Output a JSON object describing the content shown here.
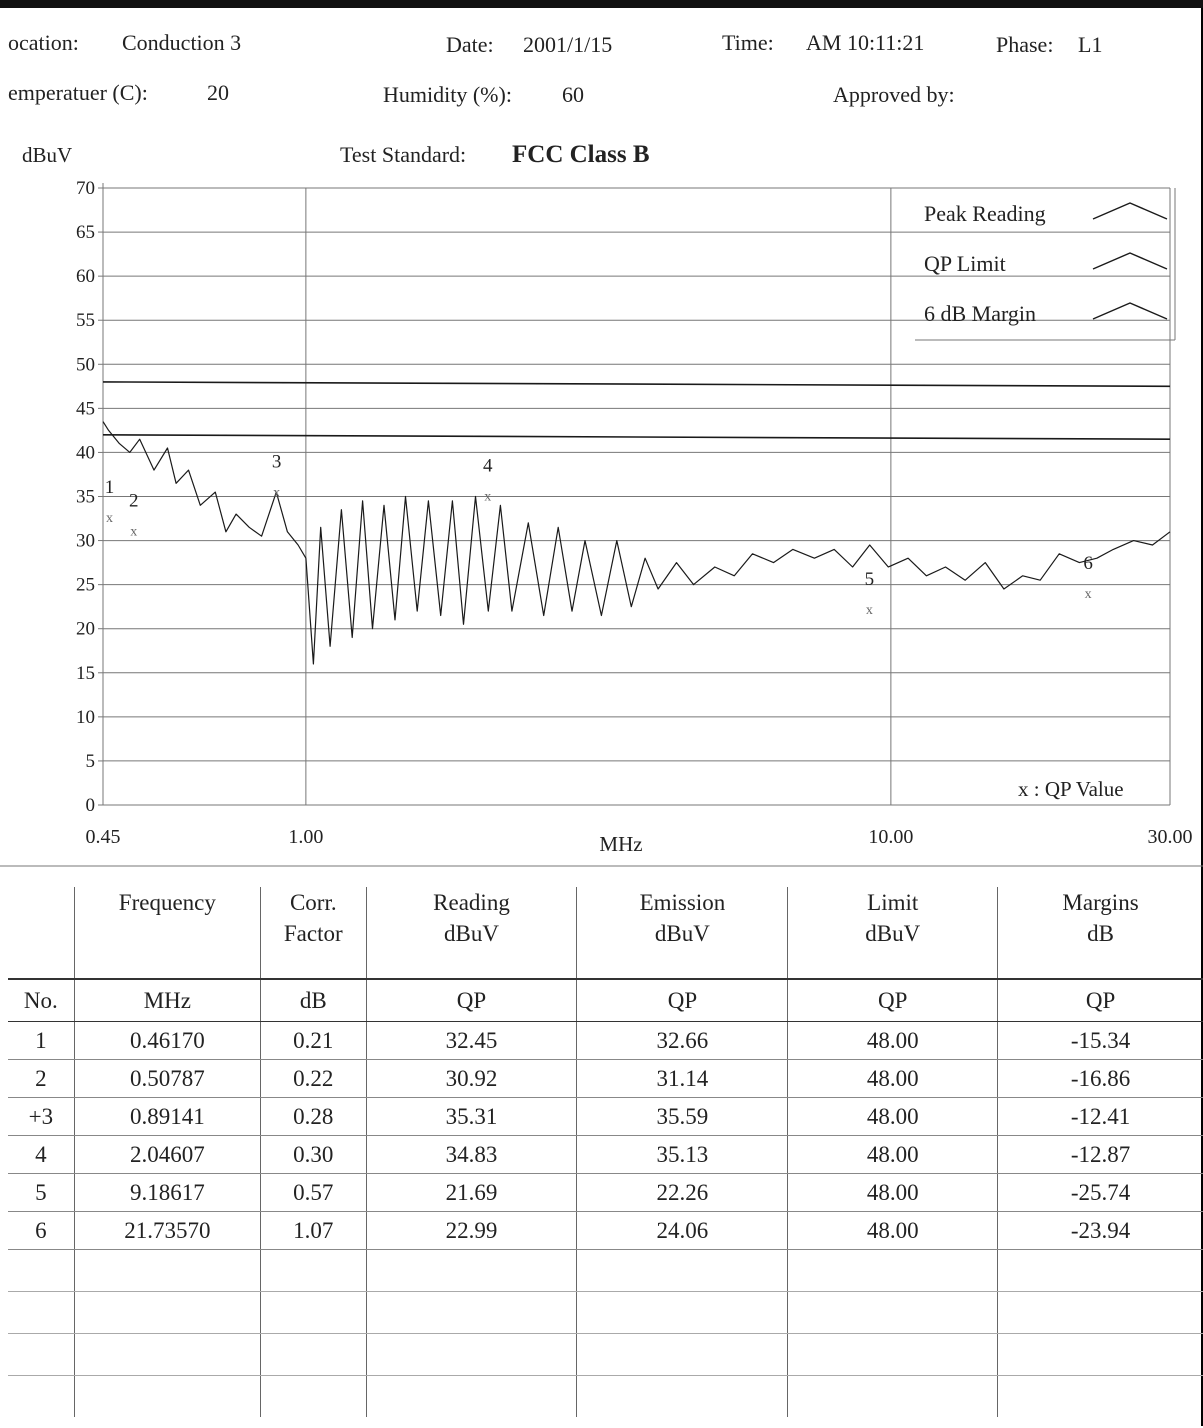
{
  "header": {
    "location_label": "ocation:",
    "location_value": "Conduction 3",
    "date_label": "Date:",
    "date_value": "2001/1/15",
    "time_label": "Time:",
    "time_value": "AM 10:11:21",
    "phase_label": "Phase:",
    "phase_value": "L1",
    "temperature_label": "emperatuer (C):",
    "temperature_value": "20",
    "humidity_label": "Humidity (%):",
    "humidity_value": "60",
    "approved_label": "Approved by:",
    "approved_value": ""
  },
  "chart_data": {
    "type": "line",
    "title": "FCC Class B",
    "title_prefix": "Test Standard:",
    "ylabel": "dBuV",
    "xlabel": "MHz",
    "xscale": "log",
    "xlim": [
      0.45,
      30.0
    ],
    "ylim": [
      0,
      70
    ],
    "yticks": [
      0,
      5,
      10,
      15,
      20,
      25,
      30,
      35,
      40,
      45,
      50,
      55,
      60,
      65,
      70
    ],
    "xticks": [
      "0.45",
      "1.00",
      "10.00",
      "30.00"
    ],
    "grid": true,
    "legend": {
      "placement": "top-right",
      "entries": [
        "Peak Reading",
        "QP Limit",
        "6 dB Margin"
      ],
      "qp_note": "x : QP Value"
    },
    "series": [
      {
        "name": "QP Limit",
        "x": [
          0.45,
          30.0
        ],
        "y": [
          48.0,
          47.5
        ]
      },
      {
        "name": "6 dB Margin",
        "x": [
          0.45,
          30.0
        ],
        "y": [
          42.0,
          41.5
        ]
      },
      {
        "name": "Peak Reading",
        "x": [
          0.45,
          0.46,
          0.48,
          0.5,
          0.52,
          0.55,
          0.58,
          0.6,
          0.63,
          0.66,
          0.7,
          0.73,
          0.76,
          0.8,
          0.84,
          0.89,
          0.93,
          0.97,
          1.0,
          1.03,
          1.06,
          1.1,
          1.15,
          1.2,
          1.25,
          1.3,
          1.36,
          1.42,
          1.48,
          1.55,
          1.62,
          1.7,
          1.78,
          1.86,
          1.95,
          2.05,
          2.15,
          2.25,
          2.4,
          2.55,
          2.7,
          2.85,
          3.0,
          3.2,
          3.4,
          3.6,
          3.8,
          4.0,
          4.3,
          4.6,
          5.0,
          5.4,
          5.8,
          6.3,
          6.8,
          7.4,
          8.0,
          8.6,
          9.2,
          9.9,
          10.7,
          11.5,
          12.4,
          13.4,
          14.5,
          15.6,
          16.8,
          18.0,
          19.4,
          21.0,
          22.5,
          24.0,
          26.0,
          28.0,
          30.0
        ],
        "y": [
          43.5,
          42.5,
          41.0,
          40.0,
          41.5,
          38.0,
          40.5,
          36.5,
          38.0,
          34.0,
          35.5,
          31.0,
          33.0,
          31.5,
          30.5,
          35.5,
          31.0,
          29.5,
          28.0,
          16.0,
          31.5,
          18.0,
          33.5,
          19.0,
          34.5,
          20.0,
          34.0,
          21.0,
          35.0,
          22.0,
          34.5,
          21.5,
          34.5,
          20.5,
          35.0,
          22.0,
          34.0,
          22.0,
          32.0,
          21.5,
          31.5,
          22.0,
          30.0,
          21.5,
          30.0,
          22.5,
          28.0,
          24.5,
          27.5,
          25.0,
          27.0,
          26.0,
          28.5,
          27.5,
          29.0,
          28.0,
          29.0,
          27.0,
          29.5,
          27.0,
          28.0,
          26.0,
          27.0,
          25.5,
          27.5,
          24.5,
          26.0,
          25.5,
          28.5,
          27.5,
          28.0,
          29.0,
          30.0,
          29.5,
          31.0
        ]
      }
    ],
    "qp_points": [
      {
        "label": "1",
        "x": 0.4617,
        "y": 32.66
      },
      {
        "label": "2",
        "x": 0.50787,
        "y": 31.14
      },
      {
        "label": "3",
        "x": 0.89141,
        "y": 35.59
      },
      {
        "label": "4",
        "x": 2.04607,
        "y": 35.13
      },
      {
        "label": "5",
        "x": 9.18617,
        "y": 22.26
      },
      {
        "label": "6",
        "x": 21.7357,
        "y": 24.06
      }
    ]
  },
  "table": {
    "header_row1": [
      "",
      "Frequency",
      "Corr.\nFactor",
      "Reading\ndBuV",
      "Emission\ndBuV",
      "Limit\ndBuV",
      "Margins\ndB"
    ],
    "header_row2": [
      "No.",
      "MHz",
      "dB",
      "QP",
      "QP",
      "QP",
      "QP"
    ],
    "rows": [
      [
        "1",
        "0.46170",
        "0.21",
        "32.45",
        "32.66",
        "48.00",
        "-15.34"
      ],
      [
        "2",
        "0.50787",
        "0.22",
        "30.92",
        "31.14",
        "48.00",
        "-16.86"
      ],
      [
        "+3",
        "0.89141",
        "0.28",
        "35.31",
        "35.59",
        "48.00",
        "-12.41"
      ],
      [
        "4",
        "2.04607",
        "0.30",
        "34.83",
        "35.13",
        "48.00",
        "-12.87"
      ],
      [
        "5",
        "9.18617",
        "0.57",
        "21.69",
        "22.26",
        "48.00",
        "-25.74"
      ],
      [
        "6",
        "21.73570",
        "1.07",
        "22.99",
        "24.06",
        "48.00",
        "-23.94"
      ]
    ],
    "empty_rows": 4
  },
  "colors": {
    "ink": "#222222",
    "grid": "#777777",
    "trace": "#1a1a1a"
  }
}
